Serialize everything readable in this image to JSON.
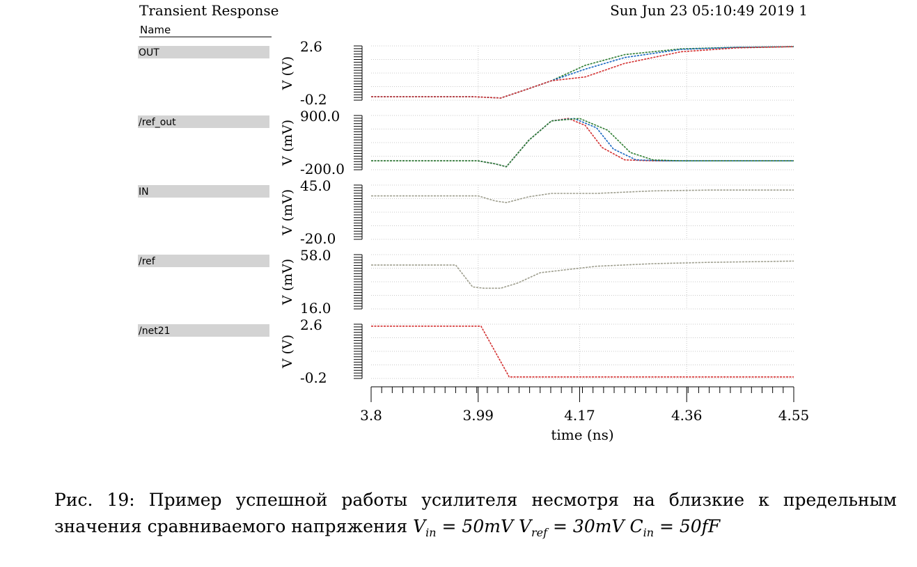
{
  "header": {
    "title": "Transient Response",
    "timestamp": "Sun Jun 23 05:10:49 2019 1",
    "name_label": "Name"
  },
  "chart_data": {
    "type": "line",
    "xlabel": "time (ns)",
    "x_ticks": [
      "3.8",
      "3.99",
      "4.17",
      "4.36",
      "4.55"
    ],
    "xlim": [
      3.8,
      4.55
    ],
    "grid": true,
    "panels": [
      {
        "name": "OUT",
        "ylabel": "V (V)",
        "ylim": [
          -0.2,
          2.6
        ],
        "y_tick_labels": [
          "2.6",
          "-0.2"
        ],
        "series": [
          {
            "color": "#2e7d32",
            "x": [
              3.8,
              3.98,
              4.01,
              4.03,
              4.07,
              4.12,
              4.18,
              4.25,
              4.35,
              4.45,
              4.55
            ],
            "y": [
              -0.02,
              -0.02,
              -0.06,
              -0.09,
              0.3,
              0.8,
              1.6,
              2.15,
              2.45,
              2.53,
              2.56
            ]
          },
          {
            "color": "#1565c0",
            "x": [
              3.8,
              3.98,
              4.01,
              4.03,
              4.07,
              4.12,
              4.18,
              4.25,
              4.35,
              4.45,
              4.55
            ],
            "y": [
              -0.02,
              -0.02,
              -0.06,
              -0.09,
              0.3,
              0.8,
              1.4,
              2.0,
              2.42,
              2.53,
              2.56
            ]
          },
          {
            "color": "#d32f2f",
            "x": [
              3.8,
              3.98,
              4.01,
              4.03,
              4.07,
              4.12,
              4.18,
              4.25,
              4.35,
              4.45,
              4.55
            ],
            "y": [
              -0.02,
              -0.02,
              -0.06,
              -0.09,
              0.3,
              0.8,
              1.0,
              1.7,
              2.3,
              2.5,
              2.56
            ]
          }
        ]
      },
      {
        "name": "/ref_out",
        "ylabel": "V (mV)",
        "ylim": [
          -200.0,
          900.0
        ],
        "y_tick_labels": [
          "900.0",
          "-200.0"
        ],
        "series": [
          {
            "color": "#d32f2f",
            "x": [
              3.8,
              3.99,
              4.02,
              4.04,
              4.08,
              4.12,
              4.15,
              4.18,
              4.21,
              4.25,
              4.3,
              4.55
            ],
            "y": [
              -20,
              -20,
              -80,
              -140,
              400,
              790,
              840,
              700,
              250,
              0,
              -20,
              -20
            ]
          },
          {
            "color": "#1565c0",
            "x": [
              3.8,
              3.99,
              4.02,
              4.04,
              4.08,
              4.12,
              4.16,
              4.2,
              4.23,
              4.27,
              4.32,
              4.55
            ],
            "y": [
              -20,
              -20,
              -80,
              -140,
              400,
              790,
              840,
              650,
              220,
              0,
              -20,
              -20
            ]
          },
          {
            "color": "#2e7d32",
            "x": [
              3.8,
              3.99,
              4.02,
              4.04,
              4.08,
              4.12,
              4.17,
              4.22,
              4.26,
              4.3,
              4.35,
              4.55
            ],
            "y": [
              -20,
              -20,
              -80,
              -140,
              400,
              790,
              840,
              600,
              150,
              0,
              -20,
              -20
            ]
          }
        ]
      },
      {
        "name": "IN",
        "ylabel": "V (mV)",
        "ylim": [
          -20.0,
          45.0
        ],
        "y_tick_labels": [
          "45.0",
          "-20.0"
        ],
        "series": [
          {
            "color": "#9e9e8e",
            "x": [
              3.8,
              3.99,
              4.02,
              4.04,
              4.08,
              4.12,
              4.2,
              4.3,
              4.4,
              4.55
            ],
            "y": [
              32,
              32,
              26,
              24,
              31,
              35,
              35,
              38,
              39,
              39
            ]
          }
        ]
      },
      {
        "name": "/ref",
        "ylabel": "V (mV)",
        "ylim": [
          16.0,
          58.0
        ],
        "y_tick_labels": [
          "58.0",
          "16.0"
        ],
        "series": [
          {
            "color": "#9e9e8e",
            "x": [
              3.8,
              3.95,
              3.98,
              4.0,
              4.03,
              4.06,
              4.1,
              4.2,
              4.3,
              4.4,
              4.55
            ],
            "y": [
              50,
              50,
              33,
              32,
              32,
              36,
              44,
              49,
              51,
              52,
              53
            ]
          }
        ]
      },
      {
        "name": "/net21",
        "ylabel": "V (V)",
        "ylim": [
          -0.2,
          2.6
        ],
        "y_tick_labels": [
          "2.6",
          "-0.2"
        ],
        "series": [
          {
            "color": "#d32f2f",
            "x": [
              3.8,
              3.995,
              4.045,
              4.55
            ],
            "y": [
              2.5,
              2.5,
              -0.12,
              -0.12
            ]
          }
        ]
      }
    ]
  },
  "caption": {
    "prefix": "Рис. 19: Пример успешной работы усилителя несмотря на близкие к предельным значения сравниваемого напряжения",
    "vin_base": "V",
    "vin_sub": "in",
    "vin_value": " = 50mV",
    "vref_base": "V",
    "vref_sub": "ref",
    "vref_value": " = 30mV",
    "cin_base": "C",
    "cin_sub": "in",
    "cin_value": " = 50fF"
  }
}
